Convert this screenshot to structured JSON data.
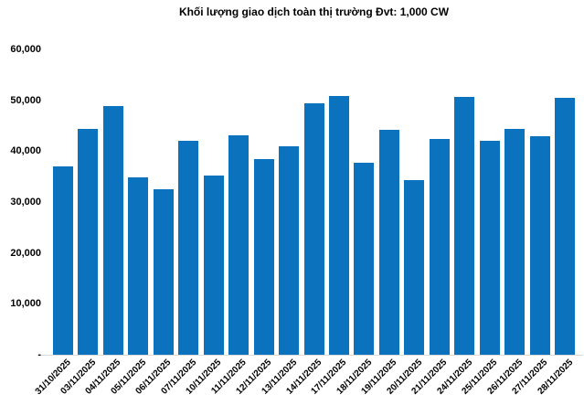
{
  "chart_data": {
    "type": "bar",
    "title": "Khối lượng giao dịch toàn thị trường Đvt: 1,000 CW",
    "xlabel": "",
    "ylabel": "",
    "categories": [
      "31/10/2025",
      "03/11/2025",
      "04/11/2025",
      "05/11/2025",
      "06/11/2025",
      "07/11/2025",
      "10/11/2025",
      "11/11/2025",
      "12/11/2025",
      "13/11/2025",
      "14/11/2025",
      "17/11/2025",
      "18/11/2025",
      "19/11/2025",
      "20/11/2025",
      "21/11/2025",
      "24/11/2025",
      "25/11/2025",
      "26/11/2025",
      "27/11/2025",
      "28/11/2025"
    ],
    "values": [
      37000,
      44300,
      48900,
      34800,
      32600,
      42000,
      35200,
      43100,
      38500,
      41000,
      49400,
      50800,
      37700,
      44200,
      34300,
      42400,
      50600,
      42100,
      44300,
      42900,
      50500
    ],
    "ylim": [
      0,
      60000
    ],
    "y_ticks": {
      "values": [
        60000,
        50000,
        40000,
        30000,
        20000,
        10000,
        0
      ],
      "labels": [
        "60,000",
        "50,000",
        "40,000",
        "30,000",
        "20,000",
        "10,000",
        "-"
      ]
    },
    "legend_position": "none",
    "grid": "off",
    "bar_color": "#0b72be",
    "axis_line_color": "#d9d9d9",
    "text_color": "#000000",
    "background_color": "#ffffff"
  }
}
